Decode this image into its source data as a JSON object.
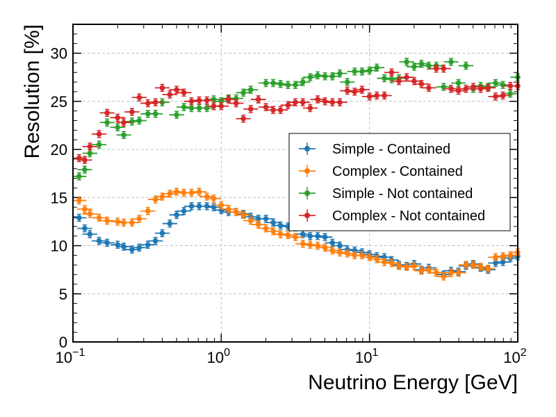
{
  "chart_data": {
    "type": "scatter",
    "xlabel": "Neutrino Energy [GeV]",
    "ylabel": "Resolution [%]",
    "xscale": "log",
    "xlim": [
      0.1,
      100
    ],
    "ylim": [
      0,
      33
    ],
    "x_ticks": [
      {
        "value": 0.1,
        "base": "10",
        "exp": "−1"
      },
      {
        "value": 1,
        "base": "10",
        "exp": "0"
      },
      {
        "value": 10,
        "base": "10",
        "exp": "1"
      },
      {
        "value": 100,
        "base": "10",
        "exp": "2"
      }
    ],
    "y_ticks": [
      "0",
      "5",
      "10",
      "15",
      "20",
      "25",
      "30"
    ],
    "grid": true,
    "legend_position": "center-right",
    "error_bars": "horizontal bin width, small vertical",
    "series": [
      {
        "name": "Simple - Contained",
        "color": "#1f77b4",
        "x": [
          0.11,
          0.12,
          0.13,
          0.15,
          0.17,
          0.2,
          0.22,
          0.25,
          0.28,
          0.32,
          0.36,
          0.4,
          0.45,
          0.5,
          0.56,
          0.63,
          0.71,
          0.8,
          0.89,
          1.0,
          1.12,
          1.26,
          1.41,
          1.58,
          1.78,
          2.0,
          2.24,
          2.51,
          2.82,
          3.16,
          3.55,
          3.98,
          4.47,
          5.01,
          5.62,
          6.31,
          7.08,
          7.94,
          8.91,
          10.0,
          11.2,
          12.6,
          14.1,
          15.8,
          17.8,
          20.0,
          22.4,
          25.1,
          28.2,
          31.6,
          35.5,
          39.8,
          44.7,
          50.1,
          56.2,
          63.1,
          70.8,
          79.4,
          89.1,
          100.0
        ],
        "values": [
          12.9,
          11.8,
          11.2,
          10.5,
          10.3,
          10.1,
          9.9,
          9.6,
          9.8,
          10.1,
          10.5,
          11.3,
          12.3,
          13.2,
          13.6,
          14.1,
          14.1,
          14.1,
          14.0,
          13.7,
          13.5,
          13.5,
          13.3,
          13.0,
          12.8,
          12.8,
          12.4,
          12.1,
          12.0,
          11.9,
          11.2,
          11.0,
          11.0,
          10.9,
          10.3,
          10.0,
          9.6,
          9.5,
          9.3,
          9.1,
          8.9,
          8.8,
          8.5,
          8.0,
          7.9,
          8.1,
          7.5,
          7.7,
          7.2,
          7.0,
          7.4,
          7.3,
          7.9,
          8.1,
          7.7,
          7.5,
          8.2,
          8.3,
          8.7,
          8.9
        ]
      },
      {
        "name": "Complex - Contained",
        "color": "#ff7f0e",
        "x": [
          0.11,
          0.12,
          0.13,
          0.15,
          0.17,
          0.2,
          0.22,
          0.25,
          0.28,
          0.32,
          0.36,
          0.4,
          0.45,
          0.5,
          0.56,
          0.63,
          0.71,
          0.8,
          0.89,
          1.0,
          1.12,
          1.26,
          1.41,
          1.58,
          1.78,
          2.0,
          2.24,
          2.51,
          2.82,
          3.16,
          3.55,
          3.98,
          4.47,
          5.01,
          5.62,
          6.31,
          7.08,
          7.94,
          8.91,
          10.0,
          11.2,
          12.6,
          14.1,
          15.8,
          17.8,
          20.0,
          22.4,
          25.1,
          28.2,
          31.6,
          35.5,
          39.8,
          44.7,
          50.1,
          56.2,
          63.1,
          70.8,
          79.4,
          89.1,
          100.0
        ],
        "values": [
          14.7,
          13.8,
          13.3,
          12.9,
          12.6,
          12.5,
          12.4,
          12.4,
          12.8,
          13.6,
          14.8,
          15.1,
          15.4,
          15.6,
          15.5,
          15.5,
          15.6,
          15.1,
          14.9,
          14.2,
          13.8,
          13.5,
          13.2,
          12.6,
          12.2,
          11.8,
          11.5,
          11.2,
          11.1,
          10.9,
          10.2,
          10.1,
          10.0,
          9.8,
          9.5,
          9.3,
          9.2,
          9.0,
          9.0,
          8.8,
          8.6,
          8.3,
          8.2,
          7.9,
          7.8,
          7.9,
          7.4,
          7.5,
          7.2,
          6.8,
          7.2,
          7.2,
          8.0,
          8.0,
          7.8,
          7.6,
          8.8,
          8.9,
          9.0,
          9.3
        ]
      },
      {
        "name": "Simple - Not contained",
        "color": "#2ca02c",
        "x": [
          0.11,
          0.12,
          0.13,
          0.15,
          0.17,
          0.2,
          0.22,
          0.25,
          0.28,
          0.32,
          0.36,
          0.4,
          0.5,
          0.56,
          0.63,
          0.71,
          0.8,
          0.89,
          1.0,
          1.12,
          1.26,
          1.41,
          1.58,
          1.78,
          2.0,
          2.24,
          2.51,
          2.82,
          3.16,
          3.55,
          3.98,
          4.47,
          5.01,
          5.62,
          6.31,
          7.08,
          7.94,
          8.91,
          10.0,
          11.2,
          12.6,
          14.1,
          15.8,
          17.8,
          20.0,
          22.4,
          25.1,
          28.2,
          31.6,
          35.5,
          39.8,
          44.7,
          50.1,
          56.2,
          63.1,
          70.8,
          79.4,
          89.1,
          100.0
        ],
        "values": [
          17.2,
          17.9,
          19.6,
          20.5,
          22.8,
          22.3,
          21.5,
          22.9,
          23.0,
          23.7,
          23.7,
          24.9,
          23.6,
          24.4,
          24.3,
          24.3,
          24.3,
          25.2,
          25.0,
          25.3,
          25.3,
          25.9,
          26.2,
          25.2,
          26.9,
          26.9,
          26.8,
          26.7,
          26.7,
          27.0,
          27.5,
          27.7,
          27.6,
          27.6,
          27.9,
          27.0,
          28.1,
          28.1,
          28.2,
          28.5,
          27.4,
          27.3,
          27.4,
          29.1,
          28.6,
          28.9,
          28.7,
          28.7,
          26.5,
          29.1,
          26.9,
          28.7,
          26.3,
          26.6,
          26.5,
          26.9,
          26.7,
          25.8,
          27.5
        ]
      },
      {
        "name": "Complex - Not contained",
        "color": "#d62728",
        "x": [
          0.11,
          0.12,
          0.13,
          0.15,
          0.17,
          0.2,
          0.22,
          0.25,
          0.28,
          0.32,
          0.36,
          0.4,
          0.45,
          0.5,
          0.56,
          0.63,
          0.71,
          0.8,
          0.89,
          1.0,
          1.12,
          1.26,
          1.41,
          1.58,
          1.78,
          2.0,
          2.24,
          2.51,
          2.82,
          3.16,
          3.55,
          3.98,
          4.47,
          5.01,
          5.62,
          6.31,
          7.08,
          7.94,
          8.91,
          10.0,
          11.2,
          12.6,
          14.1,
          15.8,
          17.8,
          20.0,
          22.4,
          25.1,
          28.2,
          31.6,
          35.5,
          39.8,
          44.7,
          50.1,
          56.2,
          63.1,
          70.8,
          79.4,
          89.1,
          100.0
        ],
        "values": [
          19.1,
          18.9,
          20.3,
          21.6,
          23.8,
          23.3,
          22.8,
          23.9,
          25.4,
          24.8,
          24.9,
          26.4,
          25.7,
          26.2,
          25.9,
          25.0,
          25.1,
          25.1,
          24.5,
          24.5,
          25.2,
          24.8,
          23.2,
          24.2,
          25.2,
          24.4,
          24.1,
          24.1,
          24.6,
          24.9,
          24.9,
          24.3,
          25.2,
          25.0,
          24.9,
          24.9,
          26.1,
          26.0,
          26.2,
          25.5,
          25.6,
          25.6,
          28.0,
          27.1,
          27.5,
          27.1,
          26.8,
          26.4,
          28.4,
          28.4,
          26.3,
          26.1,
          26.3,
          26.5,
          26.3,
          26.4,
          25.5,
          25.6,
          26.6,
          26.6
        ]
      }
    ]
  }
}
